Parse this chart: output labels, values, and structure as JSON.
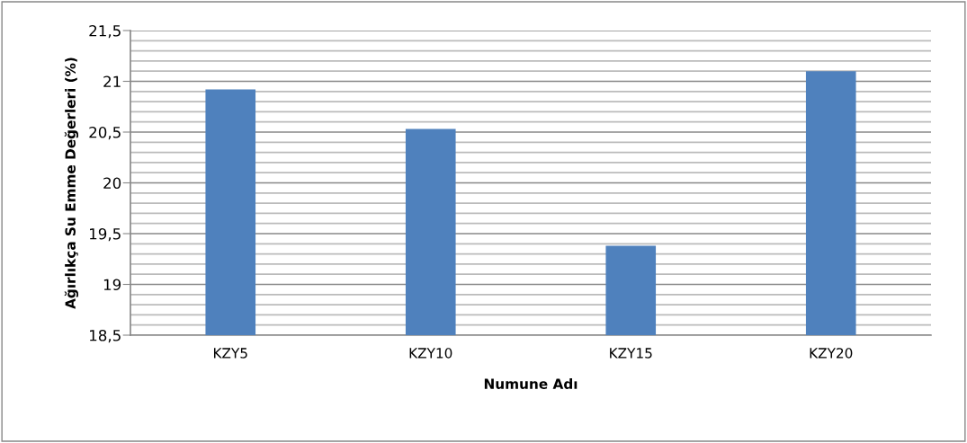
{
  "chart_data": {
    "type": "bar",
    "xlabel": "Numune Adı",
    "ylabel": "Ağırlıkça Su Emme Değerleri (%)",
    "categories": [
      "KZY5",
      "KZY10",
      "KZY15",
      "KZY20"
    ],
    "values": [
      20.92,
      20.53,
      19.38,
      21.1
    ],
    "color": "#4f81bd",
    "ylim": [
      18.5,
      21.5
    ],
    "yticks": [
      {
        "value": 18.5,
        "label": "18,5"
      },
      {
        "value": 18.6,
        "label": null
      },
      {
        "value": 18.7,
        "label": null
      },
      {
        "value": 18.8,
        "label": null
      },
      {
        "value": 18.9,
        "label": null
      },
      {
        "value": 19,
        "label": "19"
      },
      {
        "value": 19.1,
        "label": null
      },
      {
        "value": 19.2,
        "label": null
      },
      {
        "value": 19.3,
        "label": null
      },
      {
        "value": 19.4,
        "label": null
      },
      {
        "value": 19.5,
        "label": "19,5"
      },
      {
        "value": 19.6,
        "label": null
      },
      {
        "value": 19.7,
        "label": null
      },
      {
        "value": 19.8,
        "label": null
      },
      {
        "value": 19.9,
        "label": null
      },
      {
        "value": 20,
        "label": "20"
      },
      {
        "value": 20.1,
        "label": null
      },
      {
        "value": 20.2,
        "label": null
      },
      {
        "value": 20.3,
        "label": null
      },
      {
        "value": 20.4,
        "label": null
      },
      {
        "value": 20.5,
        "label": "20,5"
      },
      {
        "value": 20.6,
        "label": null
      },
      {
        "value": 20.7,
        "label": null
      },
      {
        "value": 20.8,
        "label": null
      },
      {
        "value": 20.9,
        "label": null
      },
      {
        "value": 21,
        "label": "21"
      },
      {
        "value": 21.1,
        "label": null
      },
      {
        "value": 21.2,
        "label": null
      },
      {
        "value": 21.3,
        "label": null
      },
      {
        "value": 21.4,
        "label": null
      },
      {
        "value": 21.5,
        "label": "21,5"
      }
    ],
    "grid": "y"
  }
}
